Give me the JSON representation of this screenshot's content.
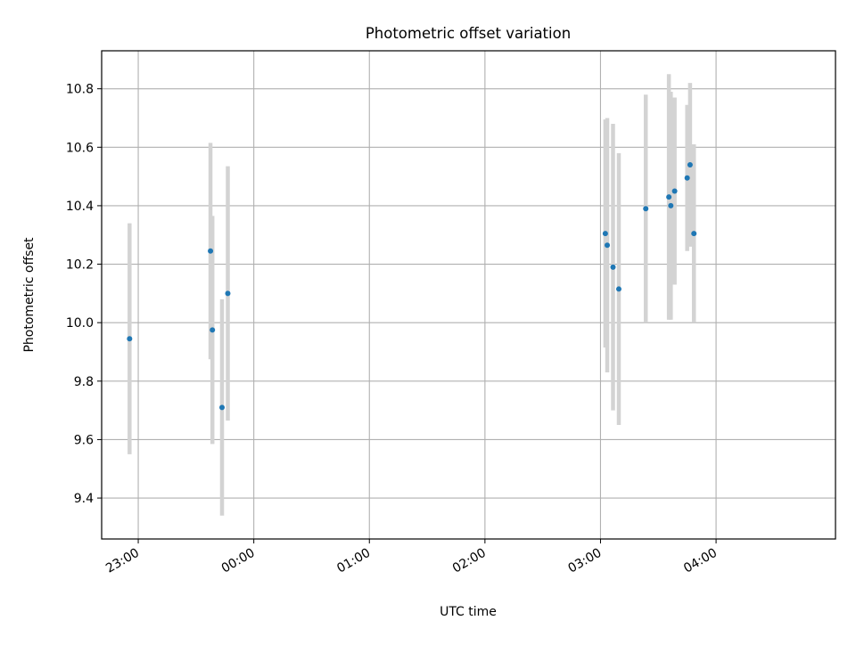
{
  "chart_data": {
    "type": "scatter",
    "title": "Photometric offset variation",
    "xlabel": "UTC time",
    "ylabel": "Photometric offset",
    "x_unit": "minutes since 23:00 UTC",
    "xlim": [
      -19,
      362
    ],
    "ylim": [
      9.26,
      10.93
    ],
    "grid": true,
    "x_ticks": [
      {
        "value": 0,
        "label": "23:00"
      },
      {
        "value": 60,
        "label": "00:00"
      },
      {
        "value": 120,
        "label": "01:00"
      },
      {
        "value": 180,
        "label": "02:00"
      },
      {
        "value": 240,
        "label": "03:00"
      },
      {
        "value": 300,
        "label": "04:00"
      }
    ],
    "y_ticks": [
      {
        "value": 9.4,
        "label": "9.4"
      },
      {
        "value": 9.6,
        "label": "9.6"
      },
      {
        "value": 9.8,
        "label": "9.8"
      },
      {
        "value": 10.0,
        "label": "10.0"
      },
      {
        "value": 10.2,
        "label": "10.2"
      },
      {
        "value": 10.4,
        "label": "10.4"
      },
      {
        "value": 10.6,
        "label": "10.6"
      },
      {
        "value": 10.8,
        "label": "10.8"
      }
    ],
    "series": [
      {
        "name": "",
        "marker_color": "#1f77b4",
        "errorbar_color": "#d3d3d3",
        "points": [
          {
            "x": -4.5,
            "y": 9.945,
            "err": 0.395
          },
          {
            "x": 37.5,
            "y": 10.245,
            "err": 0.37
          },
          {
            "x": 38.5,
            "y": 9.975,
            "err": 0.39
          },
          {
            "x": 43.5,
            "y": 9.71,
            "err": 0.37
          },
          {
            "x": 46.5,
            "y": 10.1,
            "err": 0.435
          },
          {
            "x": 242.5,
            "y": 10.305,
            "err": 0.39
          },
          {
            "x": 243.5,
            "y": 10.265,
            "err": 0.435
          },
          {
            "x": 246.5,
            "y": 10.19,
            "err": 0.49
          },
          {
            "x": 249.5,
            "y": 10.115,
            "err": 0.465
          },
          {
            "x": 263.5,
            "y": 10.39,
            "err": 0.39
          },
          {
            "x": 275.5,
            "y": 10.43,
            "err": 0.42
          },
          {
            "x": 276.5,
            "y": 10.4,
            "err": 0.39
          },
          {
            "x": 278.5,
            "y": 10.45,
            "err": 0.32
          },
          {
            "x": 285.0,
            "y": 10.495,
            "err": 0.25
          },
          {
            "x": 286.5,
            "y": 10.54,
            "err": 0.28
          },
          {
            "x": 288.5,
            "y": 10.305,
            "err": 0.305
          }
        ]
      }
    ]
  }
}
